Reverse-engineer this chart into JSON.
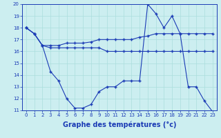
{
  "x_values": [
    0,
    1,
    2,
    3,
    4,
    5,
    6,
    7,
    8,
    9,
    10,
    11,
    12,
    13,
    14,
    15,
    16,
    17,
    18,
    19,
    20,
    21,
    22,
    23
  ],
  "line1": [
    18.0,
    17.5,
    16.5,
    16.5,
    16.5,
    16.7,
    16.7,
    16.7,
    16.8,
    17.0,
    17.0,
    17.0,
    17.0,
    17.0,
    17.2,
    17.3,
    17.5,
    17.5,
    17.5,
    17.5,
    17.5,
    17.5,
    17.5,
    17.5
  ],
  "line2": [
    18.0,
    17.5,
    16.5,
    16.3,
    16.3,
    16.3,
    16.3,
    16.3,
    16.3,
    16.3,
    16.0,
    16.0,
    16.0,
    16.0,
    16.0,
    16.0,
    16.0,
    16.0,
    16.0,
    16.0,
    16.0,
    16.0,
    16.0,
    16.0
  ],
  "line3": [
    18.0,
    17.5,
    16.5,
    14.3,
    13.5,
    12.0,
    11.2,
    11.2,
    11.5,
    12.6,
    13.0,
    13.0,
    13.5,
    13.5,
    13.5,
    20.0,
    19.2,
    18.0,
    19.0,
    17.5,
    13.0,
    13.0,
    11.8,
    10.9
  ],
  "line_color": "#1a3ab5",
  "marker": "+",
  "marker_size": 3,
  "line_width": 0.8,
  "background_color": "#cceef0",
  "grid_color": "#aadddd",
  "ylim": [
    11,
    20
  ],
  "yticks": [
    11,
    12,
    13,
    14,
    15,
    16,
    17,
    18,
    19,
    20
  ],
  "xticks": [
    0,
    1,
    2,
    3,
    4,
    5,
    6,
    7,
    8,
    9,
    10,
    11,
    12,
    13,
    14,
    15,
    16,
    17,
    18,
    19,
    20,
    21,
    22,
    23
  ],
  "xlabel": "Graphe des températures (°c)",
  "tick_fontsize": 5,
  "label_fontsize": 7
}
